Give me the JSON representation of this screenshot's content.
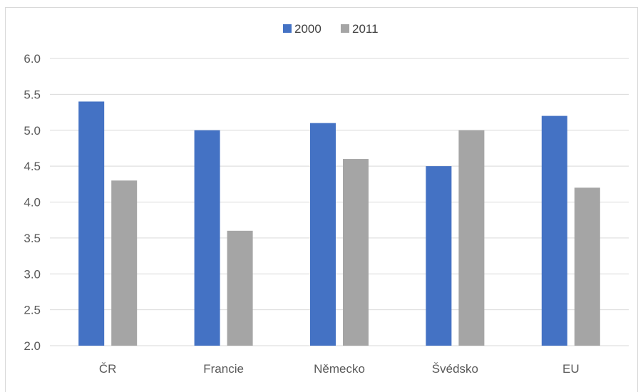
{
  "chart_data": {
    "type": "bar",
    "categories": [
      "ČR",
      "Francie",
      "Německo",
      "Švédsko",
      "EU"
    ],
    "series": [
      {
        "name": "2000",
        "values": [
          5.4,
          5.0,
          5.1,
          4.5,
          5.2
        ],
        "color": "#4472c4"
      },
      {
        "name": "2011",
        "values": [
          4.3,
          3.6,
          4.6,
          5.0,
          4.2
        ],
        "color": "#a5a5a5"
      }
    ],
    "ylim": [
      2.0,
      6.0
    ],
    "yticks": [
      "2.0",
      "2.5",
      "3.0",
      "3.5",
      "4.0",
      "4.5",
      "5.0",
      "5.5",
      "6.0"
    ],
    "grid": true,
    "legend_position": "top-center",
    "gridline_color": "#d9d9d9"
  }
}
